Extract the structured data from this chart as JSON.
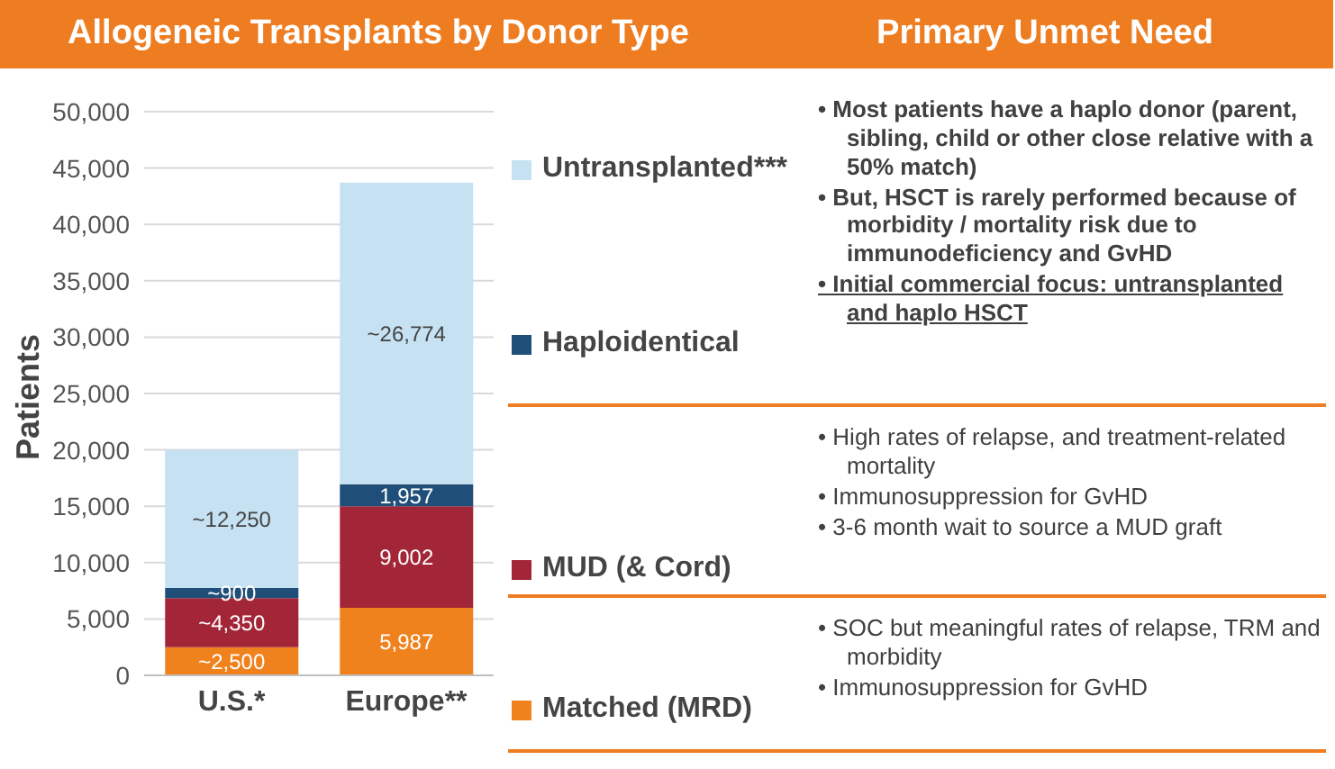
{
  "chart_data": [
    {
      "type": "bar",
      "title": "Allogeneic Transplants by Donor Type",
      "ylabel": "Patients",
      "categories": [
        "U.S.*",
        "Europe**"
      ],
      "stacked": true,
      "legend": "right",
      "grid": "y",
      "ylim": [
        0,
        50000
      ],
      "yticks": [
        {
          "value": 0,
          "label": "0"
        },
        {
          "value": 5000,
          "label": "5,000"
        },
        {
          "value": 10000,
          "label": "10,000"
        },
        {
          "value": 15000,
          "label": "15,000"
        },
        {
          "value": 20000,
          "label": "20,000"
        },
        {
          "value": 25000,
          "label": "25,000"
        },
        {
          "value": 30000,
          "label": "30,000"
        },
        {
          "value": 35000,
          "label": "35,000"
        },
        {
          "value": 40000,
          "label": "40,000"
        },
        {
          "value": 45000,
          "label": "45,000"
        },
        {
          "value": 50000,
          "label": "50,000"
        }
      ],
      "series": [
        {
          "name": "Matched (MRD)",
          "color": "#f0821e",
          "values": [
            2500,
            5987
          ],
          "value_labels": [
            "~2,500",
            "5,987"
          ]
        },
        {
          "name": "MUD (& Cord)",
          "color": "#a32638",
          "values": [
            4350,
            9002
          ],
          "value_labels": [
            "~4,350",
            "9,002"
          ]
        },
        {
          "name": "Haploidentical",
          "color": "#1f4e79",
          "values": [
            900,
            1957
          ],
          "value_labels": [
            "~900",
            "1,957"
          ]
        },
        {
          "name": "Untransplanted***",
          "color": "#c6e1f1",
          "values": [
            12250,
            26774
          ],
          "value_labels": [
            "~12,250",
            "~26,774"
          ]
        }
      ]
    },
    {
      "type": "other",
      "title": "Primary Unmet Need",
      "annotations": [
        "• Most patients have a haplo donor (parent, sibling, child or other close relative with a 50% match)",
        "• But, HSCT is rarely performed because of morbidity / mortality risk due to immunodeficiency and GvHD",
        "• Initial commercial focus: untransplanted and haplo HSCT"
      ]
    },
    {
      "type": "other",
      "annotations": [
        "• High rates of relapse, and treatment-related mortality",
        "• Immunosuppression for GvHD",
        "• 3-6 month wait to source a MUD graft"
      ]
    },
    {
      "type": "other",
      "annotations": [
        "• SOC but meaningful rates of relapse, TRM and morbidity",
        "• Immunosuppression for GvHD"
      ]
    }
  ]
}
